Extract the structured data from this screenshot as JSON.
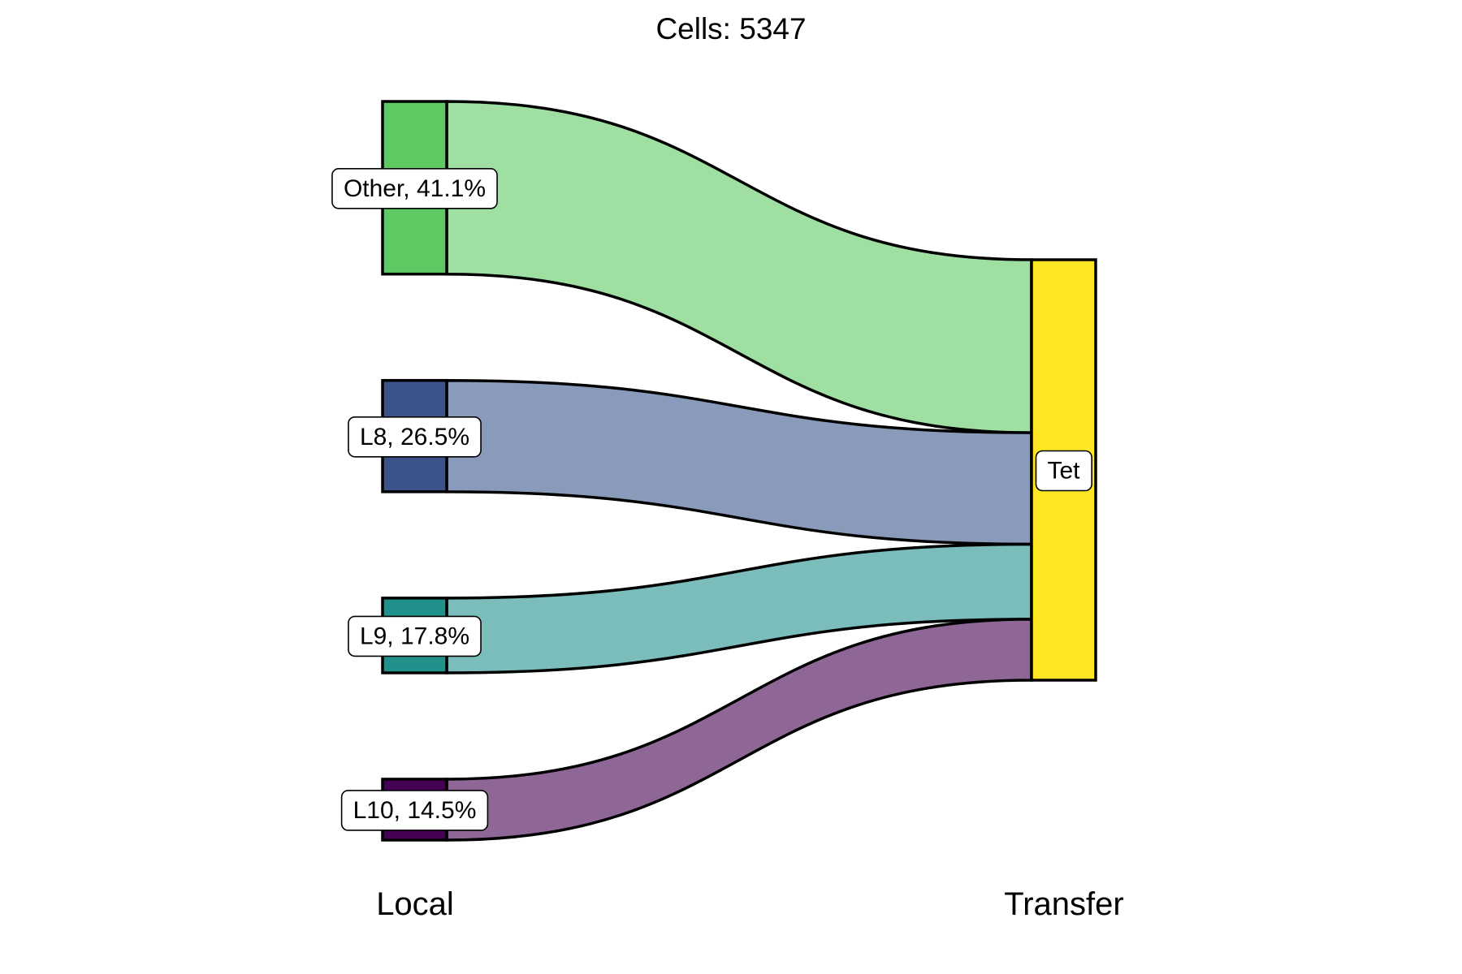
{
  "chart_data": {
    "type": "sankey",
    "title": "Cells:  5347",
    "axes": [
      "Local",
      "Transfer"
    ],
    "local_nodes": [
      {
        "name": "Other",
        "label": "Other, 41.1%",
        "percent": 41.1,
        "color": "#5ec962",
        "flow_color": "#9fdfa1"
      },
      {
        "name": "L8",
        "label": "L8, 26.5%",
        "percent": 26.5,
        "color": "#3b528b",
        "flow_color": "#8a9aba"
      },
      {
        "name": "L9",
        "label": "L9, 17.8%",
        "percent": 17.8,
        "color": "#21918c",
        "flow_color": "#7abdba"
      },
      {
        "name": "L10",
        "label": "L10, 14.5%",
        "percent": 14.5,
        "color": "#440154",
        "flow_color": "#8f6796"
      }
    ],
    "transfer_nodes": [
      {
        "name": "Tet",
        "label": "Tet",
        "percent": 100,
        "color": "#fde725"
      }
    ],
    "flows": [
      {
        "from": "Other",
        "to": "Tet",
        "percent": 41.1
      },
      {
        "from": "L8",
        "to": "Tet",
        "percent": 26.5
      },
      {
        "from": "L9",
        "to": "Tet",
        "percent": 17.8
      },
      {
        "from": "L10",
        "to": "Tet",
        "percent": 14.5
      }
    ]
  }
}
